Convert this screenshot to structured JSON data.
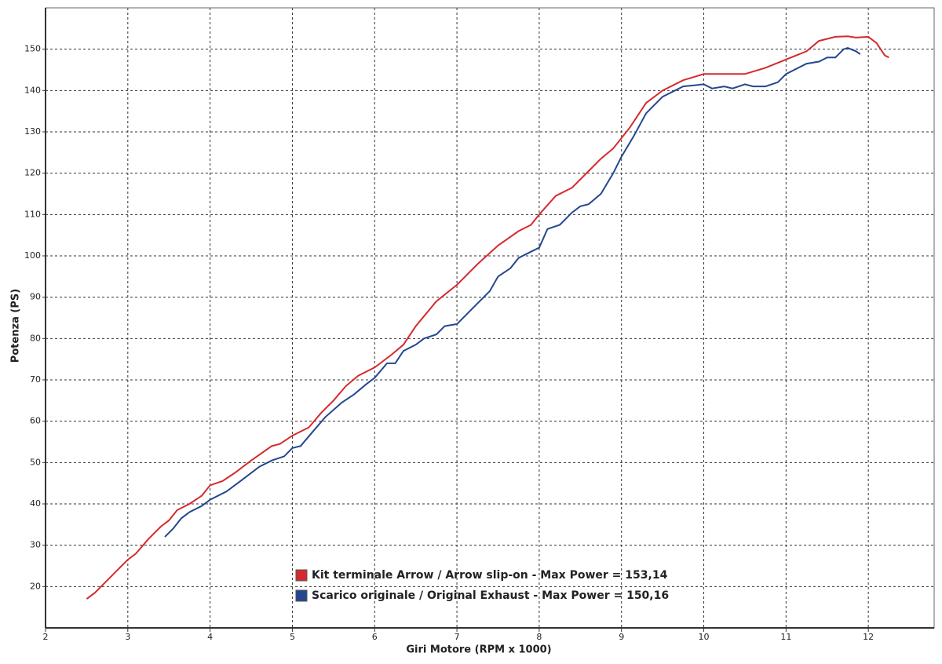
{
  "chart_data": {
    "type": "line",
    "x_label": "Giri Motore (RPM x 1000)",
    "y_label": "Potenza (PS)",
    "xlim": [
      2,
      12.8
    ],
    "xticks": [
      2,
      3,
      4,
      5,
      6,
      7,
      8,
      9,
      10,
      11,
      12
    ],
    "ylim": [
      10,
      160
    ],
    "yticks": [
      20,
      30,
      40,
      50,
      60,
      70,
      80,
      90,
      100,
      110,
      120,
      130,
      140,
      150
    ],
    "grid": true,
    "legend": "bottom",
    "series": [
      {
        "name": "Kit terminale Arrow / Arrow slip-on - Max Power = 153,14",
        "color": "#d42a2f",
        "x": [
          2.5,
          2.6,
          2.75,
          2.9,
          3.0,
          3.1,
          3.25,
          3.4,
          3.5,
          3.6,
          3.75,
          3.9,
          4.0,
          4.15,
          4.3,
          4.5,
          4.75,
          4.85,
          5.0,
          5.2,
          5.35,
          5.5,
          5.65,
          5.8,
          6.0,
          6.2,
          6.35,
          6.5,
          6.75,
          7.0,
          7.25,
          7.5,
          7.75,
          7.9,
          8.0,
          8.2,
          8.4,
          8.6,
          8.75,
          8.9,
          9.1,
          9.3,
          9.5,
          9.75,
          10.0,
          10.25,
          10.5,
          10.75,
          11.0,
          11.25,
          11.4,
          11.6,
          11.75,
          11.85,
          12.0,
          12.1,
          12.2,
          12.25
        ],
        "values": [
          17,
          18.5,
          21.5,
          24.5,
          26.5,
          28,
          31.5,
          34.5,
          36,
          38.5,
          40,
          42,
          44.5,
          45.5,
          47.5,
          50.5,
          54,
          54.5,
          56.5,
          58.5,
          62,
          65,
          68.5,
          71,
          73,
          76,
          78.5,
          83,
          89,
          93,
          98,
          102.5,
          106,
          107.5,
          110,
          114.5,
          116.5,
          120.5,
          123.5,
          126,
          131,
          137,
          140,
          142.5,
          144,
          144,
          144,
          145.5,
          147.5,
          149.5,
          152,
          153,
          153.1,
          152.8,
          153,
          151.5,
          148.5,
          148
        ]
      },
      {
        "name": "Scarico originale / Original Exhaust - Max Power = 150,16",
        "color": "#23478f",
        "x": [
          3.45,
          3.55,
          3.65,
          3.75,
          3.9,
          4.0,
          4.2,
          4.4,
          4.6,
          4.75,
          4.9,
          5.0,
          5.1,
          5.25,
          5.4,
          5.6,
          5.75,
          5.9,
          6.0,
          6.15,
          6.25,
          6.35,
          6.5,
          6.6,
          6.75,
          6.85,
          7.0,
          7.15,
          7.3,
          7.4,
          7.5,
          7.65,
          7.75,
          7.9,
          8.0,
          8.1,
          8.25,
          8.4,
          8.5,
          8.6,
          8.75,
          8.9,
          9.0,
          9.15,
          9.3,
          9.5,
          9.75,
          10.0,
          10.1,
          10.25,
          10.35,
          10.5,
          10.6,
          10.75,
          10.9,
          11.0,
          11.25,
          11.4,
          11.5,
          11.6,
          11.7,
          11.75,
          11.85,
          11.9
        ],
        "values": [
          32,
          34,
          36.5,
          38,
          39.5,
          41,
          43,
          46,
          49,
          50.5,
          51.5,
          53.5,
          54,
          57.5,
          61,
          64.5,
          66.5,
          69,
          70.5,
          74,
          74,
          77,
          78.5,
          80,
          81,
          83,
          83.5,
          86.5,
          89.5,
          91.5,
          95,
          97,
          99.5,
          101,
          102,
          106.5,
          107.5,
          110.5,
          112,
          112.5,
          115,
          120,
          124,
          129,
          134.5,
          138.5,
          141,
          141.5,
          140.5,
          141,
          140.5,
          141.5,
          141,
          141,
          142,
          144,
          146.5,
          147,
          148,
          148,
          150,
          150.3,
          149.5,
          148.8
        ]
      }
    ]
  }
}
